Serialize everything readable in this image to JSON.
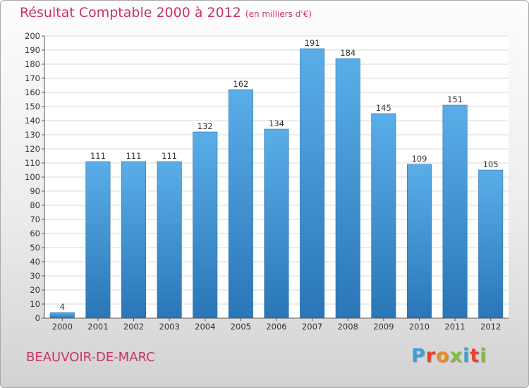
{
  "header": {
    "title": "Résultat Comptable 2000 à 2012",
    "subtitle": "(en milliers d'€)"
  },
  "footer": {
    "commune": "BEAUVOIR-DE-MARC",
    "logo": "Proxiti",
    "logo_colors": [
      "#3aa0d8",
      "#e8402a",
      "#f08a1c",
      "#7bbf3a",
      "#3aa0d8",
      "#e8402a",
      "#7bbf3a"
    ]
  },
  "colors": {
    "accent": "#cc3366",
    "bar_top": "#5aaee8",
    "bar_bottom": "#2a76b8",
    "grid": "#d9d9d9",
    "plot_bg": "#ffffff",
    "axis": "#555555"
  },
  "chart_data": {
    "type": "bar",
    "title": "Résultat Comptable 2000 à 2012",
    "subtitle": "(en milliers d'€)",
    "categories": [
      "2000",
      "2001",
      "2002",
      "2003",
      "2004",
      "2005",
      "2006",
      "2007",
      "2008",
      "2009",
      "2010",
      "2011",
      "2012"
    ],
    "values": [
      4,
      111,
      111,
      111,
      132,
      162,
      134,
      191,
      184,
      145,
      109,
      151,
      105
    ],
    "ylim": [
      0,
      200
    ],
    "ytick_step": 10,
    "xlabel": "",
    "ylabel": "",
    "grid": true,
    "data_labels": true
  }
}
